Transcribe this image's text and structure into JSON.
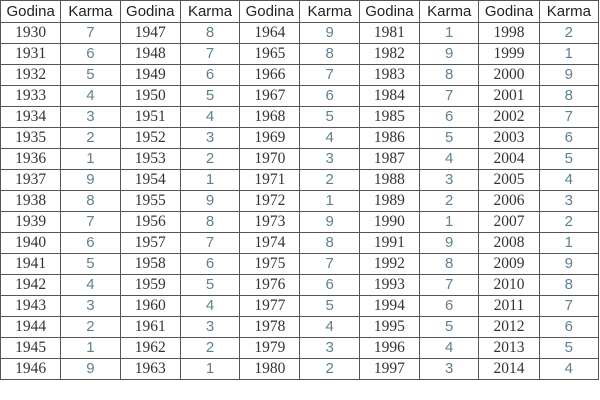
{
  "table": {
    "headers": {
      "year": "Godina",
      "karma": "Karma"
    },
    "column_groups": [
      {
        "years": [
          "1930",
          "1931",
          "1932",
          "1933",
          "1934",
          "1935",
          "1936",
          "1937",
          "1938",
          "1939",
          "1940",
          "1941",
          "1942",
          "1943",
          "1944",
          "1945",
          "1946"
        ],
        "karma": [
          "7",
          "6",
          "5",
          "4",
          "3",
          "2",
          "1",
          "9",
          "8",
          "7",
          "6",
          "5",
          "4",
          "3",
          "2",
          "1",
          "9"
        ]
      },
      {
        "years": [
          "1947",
          "1948",
          "1949",
          "1950",
          "1951",
          "1952",
          "1953",
          "1954",
          "1955",
          "1956",
          "1957",
          "1958",
          "1959",
          "1960",
          "1961",
          "1962",
          "1963"
        ],
        "karma": [
          "8",
          "7",
          "6",
          "5",
          "4",
          "3",
          "2",
          "1",
          "9",
          "8",
          "7",
          "6",
          "5",
          "4",
          "3",
          "2",
          "1"
        ]
      },
      {
        "years": [
          "1964",
          "1965",
          "1966",
          "1967",
          "1968",
          "1969",
          "1970",
          "1971",
          "1972",
          "1973",
          "1974",
          "1975",
          "1976",
          "1977",
          "1978",
          "1979",
          "1980"
        ],
        "karma": [
          "9",
          "8",
          "7",
          "6",
          "5",
          "4",
          "3",
          "2",
          "1",
          "9",
          "8",
          "7",
          "6",
          "5",
          "4",
          "3",
          "2"
        ]
      },
      {
        "years": [
          "1981",
          "1982",
          "1983",
          "1984",
          "1985",
          "1986",
          "1987",
          "1988",
          "1989",
          "1990",
          "1991",
          "1992",
          "1993",
          "1994",
          "1995",
          "1996",
          "1997"
        ],
        "karma": [
          "1",
          "9",
          "8",
          "7",
          "6",
          "5",
          "4",
          "3",
          "2",
          "1",
          "9",
          "8",
          "7",
          "6",
          "5",
          "4",
          "3"
        ]
      },
      {
        "years": [
          "1998",
          "1999",
          "2000",
          "2001",
          "2002",
          "2003",
          "2004",
          "2005",
          "2006",
          "2007",
          "2008",
          "2009",
          "2010",
          "2011",
          "2012",
          "2013",
          "2014"
        ],
        "karma": [
          "2",
          "1",
          "9",
          "8",
          "7",
          "6",
          "5",
          "4",
          "3",
          "2",
          "1",
          "9",
          "8",
          "7",
          "6",
          "5",
          "4"
        ]
      }
    ]
  },
  "colors": {
    "karma_text": "#5f8090",
    "year_text": "#333333",
    "grid": "#555555"
  }
}
